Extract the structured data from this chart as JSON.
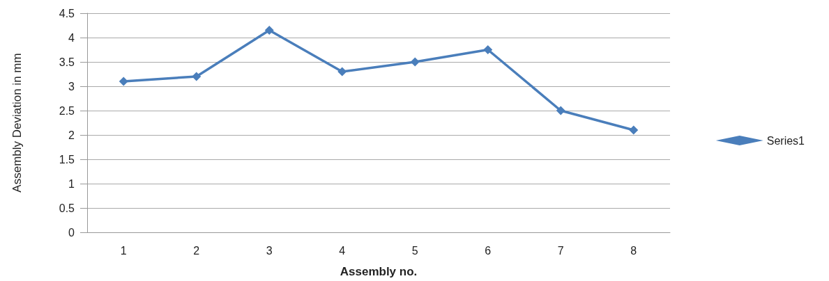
{
  "chart_data": {
    "type": "line",
    "xlabel": "Assembly no.",
    "ylabel": "Assembly Deviation in mm",
    "categories": [
      "1",
      "2",
      "3",
      "4",
      "5",
      "6",
      "7",
      "8"
    ],
    "series": [
      {
        "name": "Series1",
        "color": "#4a7ebb",
        "values": [
          3.1,
          3.2,
          4.15,
          3.3,
          3.5,
          3.75,
          2.5,
          2.1
        ]
      }
    ],
    "ylim": [
      0,
      4.5
    ],
    "yticks": [
      0,
      0.5,
      1,
      1.5,
      2,
      2.5,
      3,
      3.5,
      4,
      4.5
    ],
    "grid": "y",
    "legend": "right",
    "marker": "diamond",
    "line_style": "solid"
  }
}
